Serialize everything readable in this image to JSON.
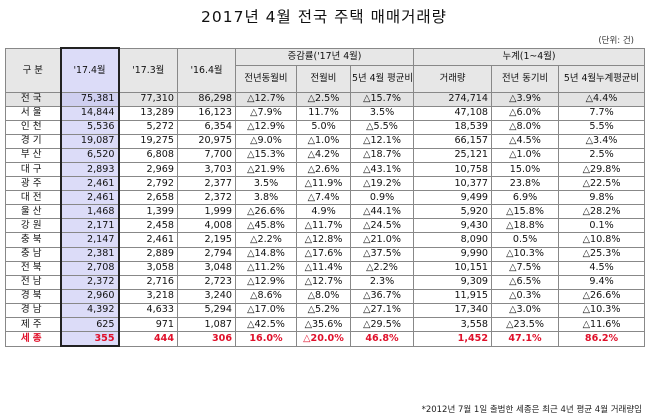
{
  "title": "2017년 4월 전국 주택 매매거래량",
  "unit": "(단위: 건)",
  "headers": {
    "region": "구 분",
    "m1": "'17.4월",
    "m2": "'17.3월",
    "m3": "'16.4월",
    "group_change": "증감률('17년 4월)",
    "c1": "전년동월비",
    "c2": "전월비",
    "c3": "5년 4월 평균비",
    "group_cum": "누계(1~4월)",
    "n1": "거래량",
    "n2": "전년 동기비",
    "n3": "5년 4월누계평균비"
  },
  "rows": [
    {
      "region": "전국",
      "m1": "75,381",
      "m2": "77,310",
      "m3": "86,298",
      "c1": "△12.7%",
      "c2": "△2.5%",
      "c3": "△15.7%",
      "n1": "274,714",
      "n2": "△3.9%",
      "n3": "△4.4%"
    },
    {
      "region": "서울",
      "m1": "14,844",
      "m2": "13,289",
      "m3": "16,123",
      "c1": "△7.9%",
      "c2": "11.7%",
      "c3": "3.5%",
      "n1": "47,108",
      "n2": "△6.0%",
      "n3": "7.7%"
    },
    {
      "region": "인천",
      "m1": "5,536",
      "m2": "5,272",
      "m3": "6,354",
      "c1": "△12.9%",
      "c2": "5.0%",
      "c3": "△5.5%",
      "n1": "18,539",
      "n2": "△8.0%",
      "n3": "5.5%"
    },
    {
      "region": "경기",
      "m1": "19,087",
      "m2": "19,275",
      "m3": "20,975",
      "c1": "△9.0%",
      "c2": "△1.0%",
      "c3": "△12.1%",
      "n1": "66,157",
      "n2": "△4.5%",
      "n3": "△3.4%"
    },
    {
      "region": "부산",
      "m1": "6,520",
      "m2": "6,808",
      "m3": "7,700",
      "c1": "△15.3%",
      "c2": "△4.2%",
      "c3": "△18.7%",
      "n1": "25,121",
      "n2": "△1.0%",
      "n3": "2.5%"
    },
    {
      "region": "대구",
      "m1": "2,893",
      "m2": "2,969",
      "m3": "3,703",
      "c1": "△21.9%",
      "c2": "△2.6%",
      "c3": "△43.1%",
      "n1": "10,758",
      "n2": "15.0%",
      "n3": "△29.8%"
    },
    {
      "region": "광주",
      "m1": "2,461",
      "m2": "2,792",
      "m3": "2,377",
      "c1": "3.5%",
      "c2": "△11.9%",
      "c3": "△19.2%",
      "n1": "10,377",
      "n2": "23.8%",
      "n3": "△22.5%"
    },
    {
      "region": "대전",
      "m1": "2,461",
      "m2": "2,658",
      "m3": "2,372",
      "c1": "3.8%",
      "c2": "△7.4%",
      "c3": "0.9%",
      "n1": "9,499",
      "n2": "6.9%",
      "n3": "9.8%"
    },
    {
      "region": "울산",
      "m1": "1,468",
      "m2": "1,399",
      "m3": "1,999",
      "c1": "△26.6%",
      "c2": "4.9%",
      "c3": "△44.1%",
      "n1": "5,920",
      "n2": "△15.8%",
      "n3": "△28.2%"
    },
    {
      "region": "강원",
      "m1": "2,171",
      "m2": "2,458",
      "m3": "4,008",
      "c1": "△45.8%",
      "c2": "△11.7%",
      "c3": "△24.5%",
      "n1": "9,430",
      "n2": "△18.8%",
      "n3": "0.1%"
    },
    {
      "region": "충북",
      "m1": "2,147",
      "m2": "2,461",
      "m3": "2,195",
      "c1": "△2.2%",
      "c2": "△12.8%",
      "c3": "△21.0%",
      "n1": "8,090",
      "n2": "0.5%",
      "n3": "△10.8%"
    },
    {
      "region": "충남",
      "m1": "2,381",
      "m2": "2,889",
      "m3": "2,794",
      "c1": "△14.8%",
      "c2": "△17.6%",
      "c3": "△37.5%",
      "n1": "9,990",
      "n2": "△10.3%",
      "n3": "△25.3%"
    },
    {
      "region": "전북",
      "m1": "2,708",
      "m2": "3,058",
      "m3": "3,048",
      "c1": "△11.2%",
      "c2": "△11.4%",
      "c3": "△2.2%",
      "n1": "10,151",
      "n2": "△7.5%",
      "n3": "4.5%"
    },
    {
      "region": "전남",
      "m1": "2,372",
      "m2": "2,716",
      "m3": "2,723",
      "c1": "△12.9%",
      "c2": "△12.7%",
      "c3": "2.3%",
      "n1": "9,309",
      "n2": "△6.5%",
      "n3": "9.4%"
    },
    {
      "region": "경북",
      "m1": "2,960",
      "m3": "3,240",
      "m2": "3,218",
      "c1": "△8.6%",
      "c2": "△8.0%",
      "c3": "△36.7%",
      "n1": "11,915",
      "n2": "△0.3%",
      "n3": "△26.6%"
    },
    {
      "region": "경남",
      "m1": "4,392",
      "m2": "4,633",
      "m3": "5,294",
      "c1": "△17.0%",
      "c2": "△5.2%",
      "c3": "△27.1%",
      "n1": "17,340",
      "n2": "△3.0%",
      "n3": "△10.3%"
    },
    {
      "region": "제주",
      "m1": "625",
      "m2": "971",
      "m3": "1,087",
      "c1": "△42.5%",
      "c2": "△35.6%",
      "c3": "△29.5%",
      "n1": "3,558",
      "n2": "△23.5%",
      "n3": "△11.6%"
    },
    {
      "region": "세종",
      "m1": "355",
      "m2": "444",
      "m3": "306",
      "c1": "16.0%",
      "c2": "△20.0%",
      "c3": "46.8%",
      "n1": "1,452",
      "n2": "47.1%",
      "n3": "86.2%"
    }
  ],
  "footnote": "*2012년 7월 1일 출범한 세종은 최근 4년 평균 4월 거래량임",
  "colors": {
    "highlight": "#dcdcf8",
    "header_bg": "#e7e7e7",
    "total_bg": "#e3e3e3",
    "sejong_red": "#e0102a"
  }
}
